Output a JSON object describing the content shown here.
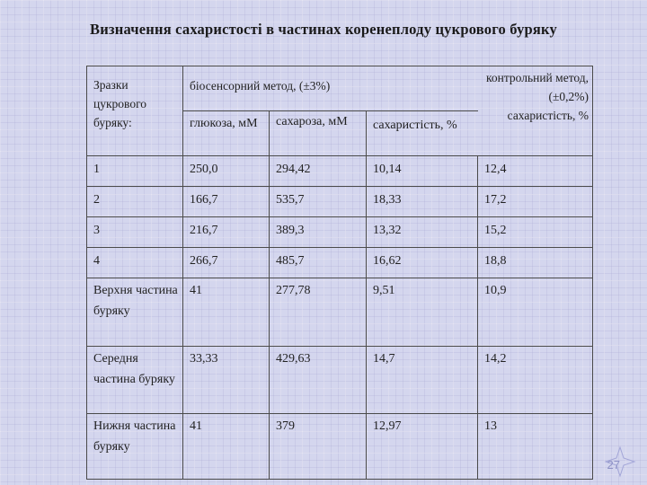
{
  "title": "Визначення сахаристості в частинах коренеплоду цукрового буряку",
  "table": {
    "corner_header": "Зразки цукрового буряку:",
    "biosensor_header": "біосенсорний метод, (±3%)",
    "control_header": "контрольний метод, (±0,2%) сахаристість, %",
    "sub_headers": [
      "глюкоза, мМ",
      "сахароза, мМ",
      "сахаристість, %"
    ],
    "rows": [
      [
        "1",
        "250,0",
        "294,42",
        "10,14",
        "12,4"
      ],
      [
        "2",
        "166,7",
        "535,7",
        "18,33",
        "17,2"
      ],
      [
        "3",
        "216,7",
        "389,3",
        "13,32",
        "15,2"
      ],
      [
        "4",
        "266,7",
        "485,7",
        "16,62",
        "18,8"
      ],
      [
        "Верхня частина буряку",
        "41",
        "277,78",
        "9,51",
        "10,9"
      ],
      [
        "Середня частина буряку",
        "33,33",
        "429,63",
        "14,7",
        "14,2"
      ],
      [
        "Нижня частина буряку",
        "41",
        "379",
        "12,97",
        "13"
      ]
    ]
  },
  "page_number": "27"
}
